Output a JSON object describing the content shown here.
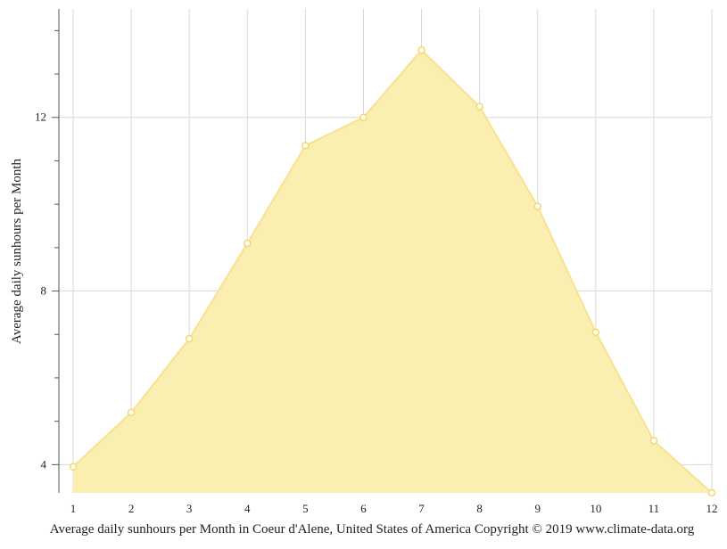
{
  "chart_data": {
    "type": "area",
    "x": [
      1,
      2,
      3,
      4,
      5,
      6,
      7,
      8,
      9,
      10,
      11,
      12
    ],
    "values": [
      3.95,
      5.2,
      6.9,
      9.1,
      11.35,
      12.0,
      13.55,
      12.25,
      9.95,
      7.05,
      4.55,
      3.35
    ],
    "xlabel": "",
    "ylabel": "Average daily sunhours per Month",
    "caption": "Average daily sunhours per Month in Coeur d'Alene, United States of America Copyright © 2019 www.climate-data.org",
    "xlim": [
      1,
      12
    ],
    "ylim": [
      3.35,
      14.5
    ],
    "y_ticks_major": [
      4,
      8,
      12
    ],
    "y_ticks_minor": [
      5,
      6,
      7,
      9,
      10,
      11,
      13,
      14
    ],
    "x_ticks": [
      "1",
      "2",
      "3",
      "4",
      "5",
      "6",
      "7",
      "8",
      "9",
      "10",
      "11",
      "12"
    ],
    "grid": true,
    "legend": "none",
    "colors": {
      "fill": "#faeeb0",
      "line": "#f7e28e",
      "marker_stroke": "#f5d867",
      "grid": "#d9d9d9",
      "axis": "#555555"
    }
  }
}
